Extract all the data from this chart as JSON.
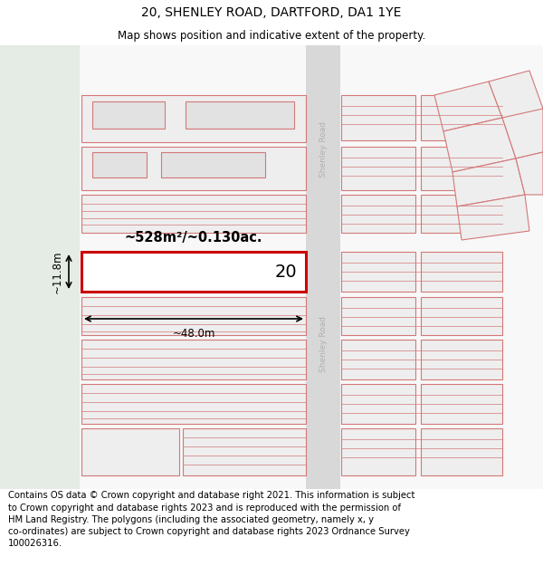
{
  "title": "20, SHENLEY ROAD, DARTFORD, DA1 1YE",
  "subtitle": "Map shows position and indicative extent of the property.",
  "footer": "Contains OS data © Crown copyright and database right 2021. This information is subject\nto Crown copyright and database rights 2023 and is reproduced with the permission of\nHM Land Registry. The polygons (including the associated geometry, namely x, y\nco-ordinates) are subject to Crown copyright and database rights 2023 Ordnance Survey\n100026316.",
  "title_fontsize": 10,
  "subtitle_fontsize": 8.5,
  "footer_fontsize": 7.2,
  "plot_number": "20",
  "area_label": "~528m²/~0.130ac.",
  "width_label": "~48.0m",
  "height_label": "~11.8m",
  "road_label": "Shenley Road",
  "bg_white": "#ffffff",
  "bg_left_strip": "#e8ede8",
  "bg_map": "#f5f5f5",
  "road_band": "#d8d8d8",
  "plot_fill": "#eeeeee",
  "plot_outline": "#d47878",
  "highlight_outline": "#cc0000",
  "highlight_fill": "#ffffff",
  "arrow_color": "#000000",
  "road_text_color": "#b0b0b0"
}
